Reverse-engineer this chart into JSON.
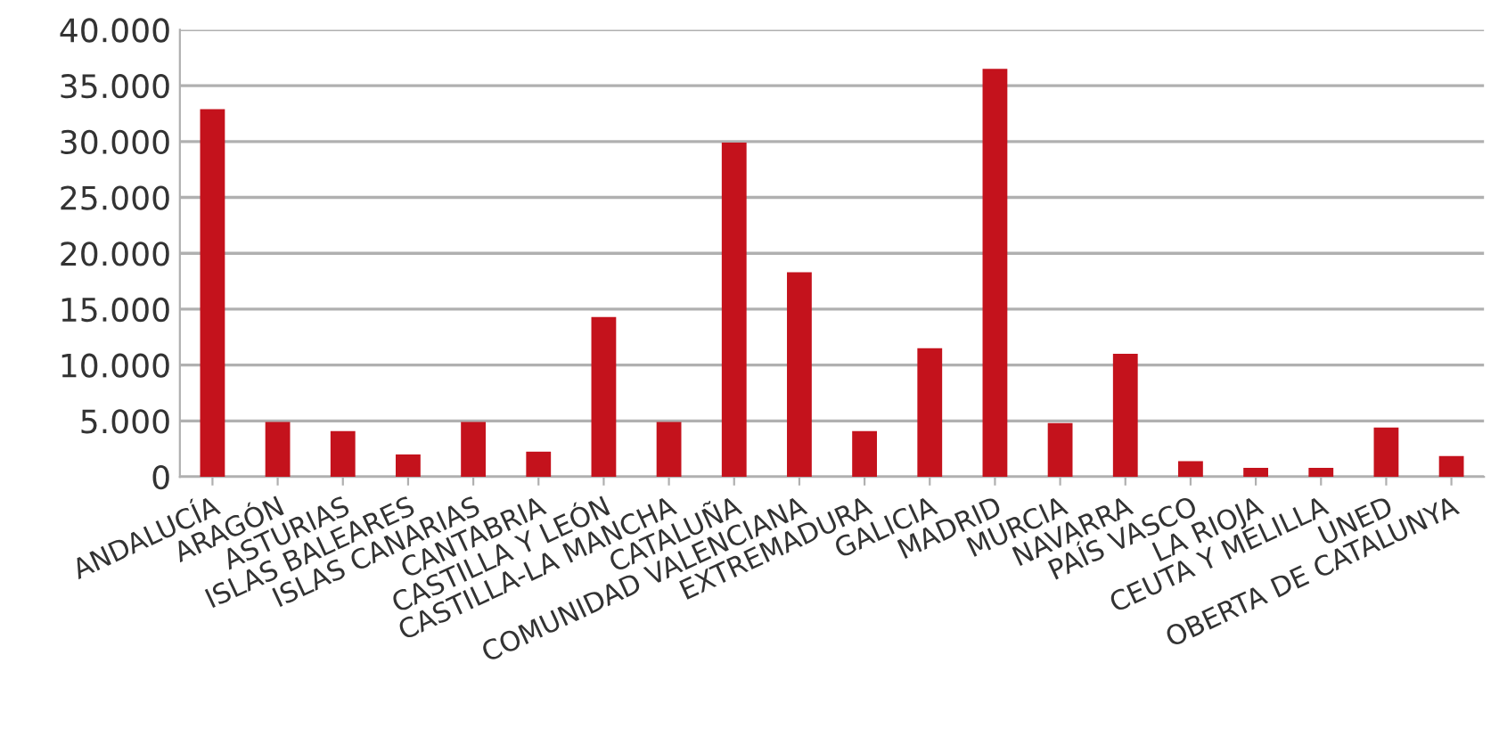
{
  "chart_data": {
    "type": "bar",
    "categories": [
      "ANDALUCÍA",
      "ARAGÓN",
      "ASTURIAS",
      "ISLAS BALEARES",
      "ISLAS CANARIAS",
      "CANTABRIA",
      "CASTILLA Y LEÓN",
      "CASTILLA-LA MANCHA",
      "CATALUÑA",
      "COMUNIDAD VALENCIANA",
      "EXTREMADURA",
      "GALICIA",
      "MADRID",
      "MURCIA",
      "NAVARRA",
      "PAÍS VASCO",
      "LA RIOJA",
      "CEUTA Y MELILLA",
      "UNED",
      "OBERTA DE CATALUNYA"
    ],
    "values": [
      32900,
      4900,
      4100,
      2000,
      4900,
      2250,
      14300,
      4900,
      29900,
      18300,
      4100,
      11500,
      36500,
      4800,
      11000,
      1400,
      800,
      800,
      4400,
      1850
    ],
    "color": "#c4121c",
    "ylim": [
      0,
      40000
    ],
    "yticks": [
      {
        "value": 0,
        "label": "0"
      },
      {
        "value": 5000,
        "label": "5.000"
      },
      {
        "value": 10000,
        "label": "10.000"
      },
      {
        "value": 15000,
        "label": "15.000"
      },
      {
        "value": 20000,
        "label": "20.000"
      },
      {
        "value": 25000,
        "label": "25.000"
      },
      {
        "value": 30000,
        "label": "30.000"
      },
      {
        "value": 35000,
        "label": "35.000"
      },
      {
        "value": 40000,
        "label": "40.000"
      }
    ],
    "grid": "y"
  }
}
